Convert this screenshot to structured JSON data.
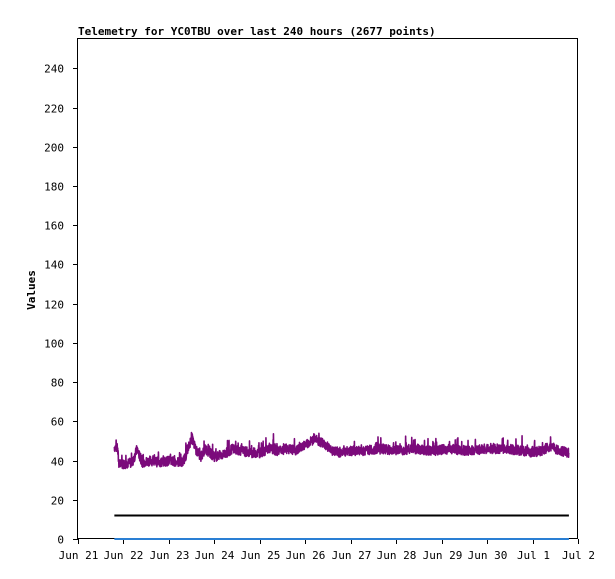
{
  "chart_data": {
    "type": "line",
    "title": "Telemetry for YC0TBU over last 240 hours (2677 points)",
    "ylabel": "Values",
    "xlabel": "",
    "ylim": [
      0,
      255
    ],
    "y_ticks": [
      0,
      20,
      40,
      60,
      80,
      100,
      120,
      140,
      160,
      180,
      200,
      220,
      240
    ],
    "x_range_days": [
      0,
      11
    ],
    "x_ticks": [
      {
        "day": 0,
        "label": "Jun 21"
      },
      {
        "day": 1,
        "label": "Jun 22"
      },
      {
        "day": 2,
        "label": "Jun 23"
      },
      {
        "day": 3,
        "label": "Jun 24"
      },
      {
        "day": 4,
        "label": "Jun 25"
      },
      {
        "day": 5,
        "label": "Jun 26"
      },
      {
        "day": 6,
        "label": "Jun 27"
      },
      {
        "day": 7,
        "label": "Jun 28"
      },
      {
        "day": 8,
        "label": "Jun 29"
      },
      {
        "day": 9,
        "label": "Jun 30"
      },
      {
        "day": 10,
        "label": "Jul 1"
      },
      {
        "day": 11,
        "label": "Jul 2"
      }
    ],
    "grid": false,
    "series": [
      {
        "color": "#7b0a7b",
        "x_start": 0.8,
        "x_end": 10.8,
        "points": [
          [
            0.8,
            47
          ],
          [
            0.87,
            46
          ],
          [
            0.9,
            38
          ],
          [
            1.2,
            39
          ],
          [
            1.3,
            46
          ],
          [
            1.4,
            39
          ],
          [
            1.6,
            40
          ],
          [
            1.8,
            39
          ],
          [
            2.0,
            40
          ],
          [
            2.3,
            39
          ],
          [
            2.4,
            44
          ],
          [
            2.5,
            52
          ],
          [
            2.6,
            45
          ],
          [
            2.7,
            42
          ],
          [
            2.8,
            46
          ],
          [
            3.0,
            42
          ],
          [
            3.2,
            43
          ],
          [
            3.4,
            46
          ],
          [
            3.6,
            45
          ],
          [
            3.8,
            44
          ],
          [
            4.0,
            44
          ],
          [
            4.2,
            46
          ],
          [
            4.4,
            45
          ],
          [
            4.6,
            46
          ],
          [
            4.8,
            45
          ],
          [
            5.0,
            48
          ],
          [
            5.2,
            51
          ],
          [
            5.4,
            49
          ],
          [
            5.6,
            45
          ],
          [
            5.8,
            44
          ],
          [
            6.0,
            45
          ],
          [
            6.3,
            45
          ],
          [
            6.6,
            46
          ],
          [
            7.0,
            45
          ],
          [
            7.4,
            46
          ],
          [
            7.8,
            45
          ],
          [
            8.2,
            46
          ],
          [
            8.6,
            45
          ],
          [
            9.0,
            46
          ],
          [
            9.4,
            46
          ],
          [
            9.8,
            45
          ],
          [
            10.0,
            44
          ],
          [
            10.2,
            45
          ],
          [
            10.4,
            47
          ],
          [
            10.6,
            45
          ],
          [
            10.8,
            44
          ]
        ]
      },
      {
        "color": "#000000",
        "x_start": 0.8,
        "x_end": 10.8,
        "points": [
          [
            0.8,
            12
          ],
          [
            10.8,
            12
          ]
        ]
      },
      {
        "color": "#2a7fd4",
        "x_start": 0.8,
        "x_end": 10.8,
        "points": [
          [
            0.8,
            0
          ],
          [
            10.8,
            0
          ]
        ]
      }
    ]
  }
}
